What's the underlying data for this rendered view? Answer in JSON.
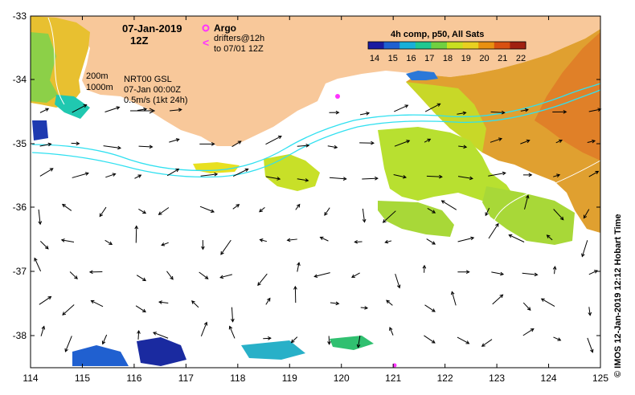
{
  "title": {
    "date": "07-Jan-2019",
    "time": "12Z"
  },
  "legend": {
    "argo": "Argo",
    "drifters_line1": "drifters@12h",
    "drifters_line2": "to 07/01 12Z",
    "colorbar_title": "4h comp, p50, All Sats",
    "colorbar_ticks": [
      "14",
      "15",
      "16",
      "17",
      "18",
      "19",
      "20",
      "21",
      "22"
    ],
    "colorbar_colors": [
      "#1a1aa0",
      "#1e60d0",
      "#18b0d8",
      "#20c890",
      "#70d040",
      "#c8e020",
      "#e8d020",
      "#e89010",
      "#d85010",
      "#a02010"
    ]
  },
  "info": {
    "contour_200": "200m",
    "contour_1000": "1000m",
    "product": "NRT00 GSL",
    "valid": "07-Jan 00:00Z",
    "scale": "0.5m/s (1kt 24h)"
  },
  "axes": {
    "lon_ticks": [
      "114",
      "115",
      "116",
      "117",
      "118",
      "119",
      "120",
      "121",
      "122",
      "123",
      "124",
      "125"
    ],
    "lat_ticks": [
      "-33",
      "-34",
      "-35",
      "-36",
      "-37",
      "-38"
    ]
  },
  "footer": {
    "credit": "© IMOS 12-Jan-2019 12:12 Hobart Time"
  },
  "colors": {
    "land": "#f8c89a",
    "arrow": "#000000",
    "magenta": "#ff33ff",
    "cyan": "#30e0f0"
  }
}
